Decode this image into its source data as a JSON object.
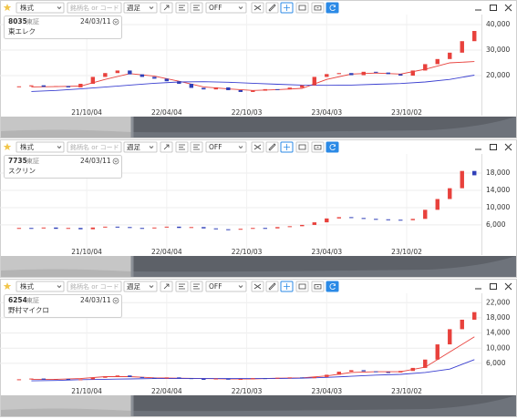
{
  "panels": [
    {
      "market_select": "株式",
      "search_placeholder": "銘柄名 or コード",
      "period": "週足",
      "indicator": "OFF",
      "code": "8035",
      "exchange": "東証",
      "date": "24/03/11",
      "name": "東エレク"
    },
    {
      "market_select": "株式",
      "search_placeholder": "銘柄名 or コード",
      "period": "週足",
      "indicator": "OFF",
      "code": "7735",
      "exchange": "東証",
      "date": "24/03/11",
      "name": "スクリン"
    },
    {
      "market_select": "株式",
      "search_placeholder": "銘柄名 or コード",
      "period": "週足",
      "indicator": "OFF",
      "code": "6254",
      "exchange": "東証",
      "date": "24/03/11",
      "name": "野村マイクロ"
    }
  ],
  "chart_data": [
    {
      "type": "candlestick",
      "up_color": "#e8413c",
      "down_color": "#2f3fb8",
      "grid": true,
      "x": [
        4,
        8,
        12,
        16,
        20,
        24,
        28,
        32,
        36,
        40,
        44,
        48,
        52,
        56,
        60,
        64,
        68,
        72,
        76,
        80,
        84,
        88,
        92,
        96,
        100,
        104,
        108,
        112,
        116,
        120,
        124,
        128,
        132,
        136,
        140,
        144,
        148,
        152
      ],
      "open": [
        15500,
        15800,
        16200,
        15600,
        15900,
        15400,
        16800,
        19500,
        21000,
        22000,
        20500,
        19500,
        18800,
        17800,
        16800,
        15200,
        14600,
        15400,
        14300,
        13600,
        14100,
        14700,
        14600,
        15300,
        16200,
        19500,
        20600,
        21000,
        20200,
        21500,
        21200,
        20600,
        20000,
        22000,
        24500,
        26500,
        29000,
        33500
      ],
      "close": [
        15800,
        16200,
        15600,
        15900,
        15400,
        16800,
        19500,
        21000,
        22000,
        20500,
        19500,
        18800,
        17800,
        16800,
        15200,
        14600,
        15400,
        14300,
        13600,
        14100,
        14700,
        14600,
        15300,
        16200,
        19500,
        20600,
        21000,
        20200,
        21500,
        21200,
        20600,
        20000,
        22000,
        24500,
        26500,
        29000,
        33500,
        37500
      ],
      "series": [
        {
          "color": "#e8413c",
          "x": [
            8,
            16,
            24,
            32,
            40,
            48,
            56,
            64,
            72,
            80,
            88,
            96,
            104,
            112,
            120,
            128,
            136,
            144,
            152
          ],
          "values": [
            15600,
            15700,
            15900,
            18500,
            20800,
            19800,
            17800,
            15600,
            14800,
            14200,
            14500,
            15000,
            18500,
            20600,
            21000,
            20600,
            22500,
            25000,
            25500
          ]
        },
        {
          "color": "#3a3fd0",
          "x": [
            8,
            16,
            24,
            32,
            40,
            48,
            56,
            64,
            72,
            80,
            88,
            96,
            104,
            112,
            120,
            128,
            136,
            144,
            152
          ],
          "values": [
            13800,
            14200,
            14800,
            15500,
            16300,
            17000,
            17500,
            17600,
            17400,
            17000,
            16600,
            16300,
            16200,
            16300,
            16600,
            16900,
            17500,
            18500,
            20200
          ]
        }
      ],
      "xlim": [
        -1,
        154
      ],
      "xticks": [
        {
          "value": 26,
          "label": "21/10/04"
        },
        {
          "value": 52,
          "label": "22/04/04"
        },
        {
          "value": 78,
          "label": "22/10/03"
        },
        {
          "value": 104,
          "label": "23/04/03"
        },
        {
          "value": 130,
          "label": "23/10/02"
        }
      ],
      "ylim": [
        6800,
        42500
      ],
      "yticks": [
        {
          "value": 20000,
          "label": "20,000"
        },
        {
          "value": 30000,
          "label": "30,000"
        },
        {
          "value": 40000,
          "label": "40,000"
        }
      ]
    },
    {
      "type": "candlestick",
      "up_color": "#e8413c",
      "down_color": "#2f3fb8",
      "grid": true,
      "x": [
        4,
        8,
        12,
        16,
        20,
        24,
        28,
        32,
        36,
        40,
        44,
        48,
        52,
        56,
        60,
        64,
        68,
        72,
        76,
        80,
        84,
        88,
        92,
        96,
        100,
        104,
        108,
        112,
        116,
        120,
        124,
        128,
        132,
        136,
        140,
        144,
        148,
        152
      ],
      "open": [
        5200,
        5300,
        5200,
        5400,
        5100,
        5300,
        5000,
        5400,
        5600,
        5500,
        5300,
        5200,
        5400,
        5600,
        5300,
        5500,
        5200,
        5000,
        4900,
        5100,
        5300,
        5200,
        5500,
        5700,
        6000,
        6600,
        7500,
        7800,
        7600,
        7400,
        7300,
        7200,
        7100,
        7400,
        9500,
        12000,
        14500,
        18500
      ],
      "close": [
        5300,
        5200,
        5400,
        5100,
        5300,
        5000,
        5400,
        5600,
        5500,
        5300,
        5200,
        5400,
        5600,
        5300,
        5500,
        5200,
        5000,
        4900,
        5100,
        5300,
        5200,
        5500,
        5700,
        6000,
        6600,
        7500,
        7800,
        7600,
        7400,
        7300,
        7200,
        7100,
        7400,
        9500,
        12000,
        14500,
        18500,
        17500
      ],
      "xlim": [
        -1,
        154
      ],
      "xticks": [
        {
          "value": 26,
          "label": "21/10/04"
        },
        {
          "value": 52,
          "label": "22/04/04"
        },
        {
          "value": 78,
          "label": "22/10/03"
        },
        {
          "value": 104,
          "label": "23/04/03"
        },
        {
          "value": 130,
          "label": "23/10/02"
        }
      ],
      "ylim": [
        500,
        21600
      ],
      "yticks": [
        {
          "value": 6000,
          "label": "6,000"
        },
        {
          "value": 10000,
          "label": "10,000"
        },
        {
          "value": 14000,
          "label": "14,000"
        },
        {
          "value": 18000,
          "label": "18,000"
        }
      ]
    },
    {
      "type": "candlestick",
      "up_color": "#e8413c",
      "down_color": "#2f3fb8",
      "grid": true,
      "x": [
        4,
        8,
        12,
        16,
        20,
        24,
        28,
        32,
        36,
        40,
        44,
        48,
        52,
        56,
        60,
        64,
        68,
        72,
        76,
        80,
        84,
        88,
        92,
        96,
        100,
        104,
        108,
        112,
        116,
        120,
        124,
        128,
        132,
        136,
        140,
        144,
        148,
        152
      ],
      "open": [
        1700,
        1800,
        2000,
        1700,
        1900,
        1600,
        1800,
        2200,
        2600,
        2800,
        2400,
        2200,
        2000,
        2300,
        2100,
        1900,
        1800,
        2000,
        1700,
        1900,
        2100,
        2000,
        2200,
        2300,
        2100,
        2400,
        3000,
        3800,
        4200,
        3900,
        3700,
        3600,
        4000,
        4800,
        7000,
        11000,
        15000,
        17500
      ],
      "close": [
        1800,
        2000,
        1700,
        1900,
        1600,
        1800,
        2200,
        2600,
        2800,
        2400,
        2200,
        2000,
        2300,
        2100,
        1900,
        1800,
        2000,
        1700,
        1900,
        2100,
        2000,
        2200,
        2300,
        2100,
        2400,
        3000,
        3800,
        4200,
        3900,
        3700,
        3600,
        4000,
        4800,
        7000,
        11000,
        15000,
        17500,
        19500
      ],
      "series": [
        {
          "color": "#e8413c",
          "x": [
            8,
            16,
            24,
            32,
            40,
            48,
            56,
            64,
            72,
            80,
            88,
            96,
            104,
            112,
            120,
            128,
            136,
            144,
            152
          ],
          "values": [
            1800,
            1800,
            2000,
            2500,
            2500,
            2200,
            2100,
            2000,
            1900,
            1900,
            2100,
            2200,
            2700,
            3600,
            3800,
            3800,
            5000,
            9000,
            13000
          ]
        },
        {
          "color": "#3a3fd0",
          "x": [
            8,
            16,
            24,
            32,
            40,
            48,
            56,
            64,
            72,
            80,
            88,
            96,
            104,
            112,
            120,
            128,
            136,
            144,
            152
          ],
          "values": [
            1400,
            1500,
            1700,
            1800,
            1900,
            2000,
            2000,
            2000,
            2000,
            2000,
            2000,
            2100,
            2300,
            2600,
            2900,
            3100,
            3600,
            4500,
            7000
          ]
        }
      ],
      "xlim": [
        -1,
        154
      ],
      "xticks": [
        {
          "value": 26,
          "label": "21/10/04"
        },
        {
          "value": 52,
          "label": "22/04/04"
        },
        {
          "value": 78,
          "label": "22/10/03"
        },
        {
          "value": 104,
          "label": "23/04/03"
        },
        {
          "value": 130,
          "label": "23/10/02"
        }
      ],
      "ylim": [
        -500,
        23500
      ],
      "yticks": [
        {
          "value": 6000,
          "label": "6,000"
        },
        {
          "value": 10000,
          "label": "10,000"
        },
        {
          "value": 14000,
          "label": "14,000"
        },
        {
          "value": 18000,
          "label": "18,000"
        },
        {
          "value": 22000,
          "label": "22,000"
        }
      ]
    }
  ]
}
